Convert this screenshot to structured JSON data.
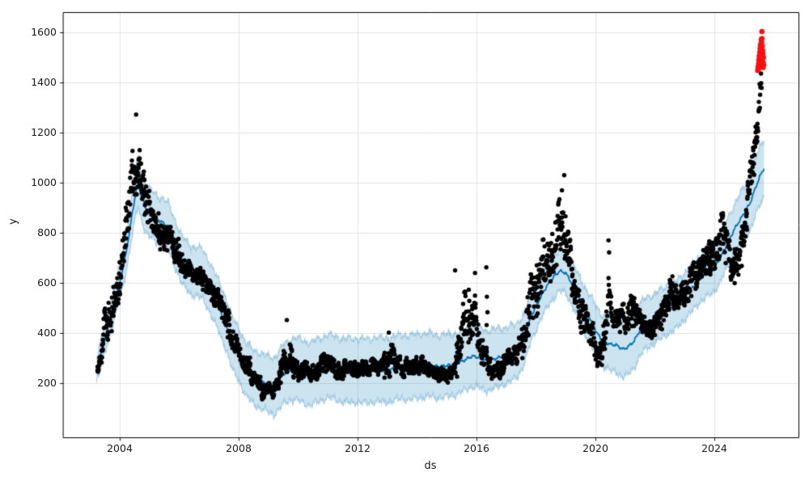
{
  "chart_data": {
    "type": "scatter",
    "subtype": "forecast-with-uncertainty-band",
    "title": "",
    "xlabel": "ds",
    "ylabel": "y",
    "legend": null,
    "grid": true,
    "x_range": [
      2002.095,
      2026.83
    ],
    "y_range": [
      -17.7,
      1679.2
    ],
    "x_ticks": [
      2004,
      2008,
      2012,
      2016,
      2020,
      2024
    ],
    "x_tick_labels": [
      "2004",
      "2008",
      "2012",
      "2016",
      "2020",
      "2024"
    ],
    "y_ticks": [
      200,
      400,
      600,
      800,
      1000,
      1200,
      1400,
      1600
    ],
    "y_tick_labels": [
      "200",
      "400",
      "600",
      "800",
      "1000",
      "1200",
      "1400",
      "1600"
    ],
    "colors": {
      "trend_line": "#0072B2",
      "uncertainty_band": "rgba(0,114,178,0.2)",
      "band_edge": "rgba(0,114,178,0.28)",
      "observations": "#000000",
      "anomalies": "#fa0f0f",
      "grid": "#e4e4e4",
      "frame": "#000000"
    },
    "trend": [
      [
        2003.22,
        255
      ],
      [
        2003.4,
        330
      ],
      [
        2003.6,
        420
      ],
      [
        2003.8,
        510
      ],
      [
        2004.0,
        600
      ],
      [
        2004.2,
        710
      ],
      [
        2004.4,
        860
      ],
      [
        2004.55,
        970
      ],
      [
        2004.62,
        1000
      ],
      [
        2004.7,
        960
      ],
      [
        2004.85,
        905
      ],
      [
        2005.0,
        880
      ],
      [
        2005.2,
        860
      ],
      [
        2005.45,
        840
      ],
      [
        2005.63,
        825
      ],
      [
        2005.85,
        760
      ],
      [
        2006.1,
        690
      ],
      [
        2006.37,
        652
      ],
      [
        2006.6,
        645
      ],
      [
        2006.78,
        636
      ],
      [
        2007.0,
        590
      ],
      [
        2007.3,
        515
      ],
      [
        2007.6,
        430
      ],
      [
        2007.78,
        360
      ],
      [
        2008.0,
        315
      ],
      [
        2008.25,
        255
      ],
      [
        2008.5,
        225
      ],
      [
        2008.75,
        208
      ],
      [
        2009.0,
        196
      ],
      [
        2009.2,
        188
      ],
      [
        2009.35,
        210
      ],
      [
        2009.5,
        235
      ],
      [
        2009.7,
        252
      ],
      [
        2009.9,
        258
      ],
      [
        2010.1,
        248
      ],
      [
        2010.4,
        237
      ],
      [
        2010.7,
        252
      ],
      [
        2011.0,
        268
      ],
      [
        2011.2,
        262
      ],
      [
        2011.5,
        252
      ],
      [
        2011.8,
        248
      ],
      [
        2012.0,
        252
      ],
      [
        2012.3,
        247
      ],
      [
        2012.6,
        256
      ],
      [
        2012.9,
        250
      ],
      [
        2013.2,
        258
      ],
      [
        2013.5,
        266
      ],
      [
        2013.8,
        262
      ],
      [
        2014.1,
        270
      ],
      [
        2014.4,
        274
      ],
      [
        2014.7,
        266
      ],
      [
        2015.0,
        270
      ],
      [
        2015.3,
        276
      ],
      [
        2015.6,
        292
      ],
      [
        2015.85,
        308
      ],
      [
        2016.1,
        302
      ],
      [
        2016.35,
        290
      ],
      [
        2016.6,
        296
      ],
      [
        2016.9,
        308
      ],
      [
        2017.1,
        315
      ],
      [
        2017.35,
        330
      ],
      [
        2017.6,
        375
      ],
      [
        2017.85,
        470
      ],
      [
        2018.1,
        530
      ],
      [
        2018.35,
        585
      ],
      [
        2018.6,
        625
      ],
      [
        2018.8,
        648
      ],
      [
        2019.0,
        640
      ],
      [
        2019.2,
        600
      ],
      [
        2019.4,
        550
      ],
      [
        2019.6,
        500
      ],
      [
        2019.85,
        450
      ],
      [
        2020.05,
        400
      ],
      [
        2020.25,
        368
      ],
      [
        2020.5,
        355
      ],
      [
        2020.7,
        352
      ],
      [
        2020.93,
        335
      ],
      [
        2021.1,
        345
      ],
      [
        2021.3,
        368
      ],
      [
        2021.5,
        412
      ],
      [
        2021.7,
        440
      ],
      [
        2021.9,
        452
      ],
      [
        2022.1,
        468
      ],
      [
        2022.4,
        490
      ],
      [
        2022.7,
        510
      ],
      [
        2023.0,
        548
      ],
      [
        2023.3,
        585
      ],
      [
        2023.56,
        622
      ],
      [
        2023.8,
        640
      ],
      [
        2024.0,
        660
      ],
      [
        2024.2,
        700
      ],
      [
        2024.45,
        760
      ],
      [
        2024.7,
        820
      ],
      [
        2024.95,
        868
      ],
      [
        2025.2,
        918
      ],
      [
        2025.4,
        985
      ],
      [
        2025.55,
        1030
      ],
      [
        2025.67,
        1058
      ]
    ],
    "band_halfwidth": [
      [
        2003.22,
        48
      ],
      [
        2003.8,
        62
      ],
      [
        2004.3,
        82
      ],
      [
        2004.62,
        98
      ],
      [
        2005.2,
        95
      ],
      [
        2006.0,
        95
      ],
      [
        2007.0,
        100
      ],
      [
        2008.0,
        105
      ],
      [
        2009.0,
        112
      ],
      [
        2010.0,
        124
      ],
      [
        2012.0,
        128
      ],
      [
        2014.0,
        128
      ],
      [
        2015.5,
        122
      ],
      [
        2016.5,
        120
      ],
      [
        2017.5,
        105
      ],
      [
        2018.3,
        88
      ],
      [
        2018.9,
        80
      ],
      [
        2019.5,
        92
      ],
      [
        2020.3,
        102
      ],
      [
        2021.0,
        112
      ],
      [
        2021.8,
        100
      ],
      [
        2022.5,
        96
      ],
      [
        2023.5,
        92
      ],
      [
        2024.3,
        95
      ],
      [
        2025.0,
        105
      ],
      [
        2025.67,
        118
      ]
    ],
    "observed_clusters": [
      [
        2003.25,
        262,
        18
      ],
      [
        2003.4,
        300,
        45
      ],
      [
        2003.5,
        470,
        85
      ],
      [
        2003.62,
        430,
        105
      ],
      [
        2003.75,
        500,
        80
      ],
      [
        2003.9,
        560,
        70
      ],
      [
        2004.05,
        650,
        85
      ],
      [
        2004.2,
        850,
        120
      ],
      [
        2004.35,
        960,
        140
      ],
      [
        2004.5,
        1020,
        130
      ],
      [
        2004.62,
        1045,
        110
      ],
      [
        2004.75,
        980,
        110
      ],
      [
        2004.9,
        930,
        90
      ],
      [
        2005.05,
        880,
        80
      ],
      [
        2005.2,
        830,
        70
      ],
      [
        2005.4,
        790,
        70
      ],
      [
        2005.6,
        780,
        60
      ],
      [
        2005.8,
        750,
        60
      ],
      [
        2006.0,
        720,
        60
      ],
      [
        2006.2,
        660,
        50
      ],
      [
        2006.45,
        640,
        40
      ],
      [
        2006.7,
        635,
        40
      ],
      [
        2006.9,
        600,
        50
      ],
      [
        2007.1,
        560,
        50
      ],
      [
        2007.35,
        520,
        55
      ],
      [
        2007.6,
        450,
        60
      ],
      [
        2007.8,
        380,
        50
      ],
      [
        2008.0,
        330,
        45
      ],
      [
        2008.2,
        300,
        45
      ],
      [
        2008.45,
        240,
        45
      ],
      [
        2008.7,
        185,
        45
      ],
      [
        2008.9,
        165,
        35
      ],
      [
        2009.1,
        165,
        35
      ],
      [
        2009.3,
        190,
        45
      ],
      [
        2009.5,
        280,
        70
      ],
      [
        2009.65,
        320,
        70
      ],
      [
        2009.8,
        290,
        60
      ],
      [
        2010.0,
        240,
        40
      ],
      [
        2010.2,
        260,
        45
      ],
      [
        2010.45,
        235,
        40
      ],
      [
        2010.7,
        260,
        45
      ],
      [
        2010.9,
        290,
        45
      ],
      [
        2011.1,
        280,
        40
      ],
      [
        2011.35,
        255,
        40
      ],
      [
        2011.6,
        250,
        40
      ],
      [
        2011.85,
        260,
        40
      ],
      [
        2012.1,
        255,
        35
      ],
      [
        2012.35,
        250,
        35
      ],
      [
        2012.6,
        265,
        40
      ],
      [
        2012.85,
        255,
        35
      ],
      [
        2013.05,
        310,
        85
      ],
      [
        2013.25,
        280,
        45
      ],
      [
        2013.5,
        260,
        40
      ],
      [
        2013.75,
        265,
        40
      ],
      [
        2014.0,
        270,
        40
      ],
      [
        2014.25,
        270,
        40
      ],
      [
        2014.5,
        240,
        35
      ],
      [
        2014.75,
        235,
        35
      ],
      [
        2015.0,
        230,
        30
      ],
      [
        2015.2,
        240,
        35
      ],
      [
        2015.45,
        340,
        110
      ],
      [
        2015.6,
        450,
        160
      ],
      [
        2015.75,
        480,
        130
      ],
      [
        2015.9,
        470,
        100
      ],
      [
        2016.05,
        430,
        90
      ],
      [
        2016.2,
        330,
        80
      ],
      [
        2016.35,
        280,
        60
      ],
      [
        2016.55,
        235,
        35
      ],
      [
        2016.8,
        260,
        40
      ],
      [
        2017.05,
        290,
        40
      ],
      [
        2017.3,
        310,
        45
      ],
      [
        2017.55,
        370,
        70
      ],
      [
        2017.8,
        520,
        110
      ],
      [
        2018.0,
        560,
        100
      ],
      [
        2018.2,
        650,
        120
      ],
      [
        2018.4,
        700,
        120
      ],
      [
        2018.6,
        760,
        130
      ],
      [
        2018.8,
        840,
        130
      ],
      [
        2018.95,
        820,
        150
      ],
      [
        2019.1,
        700,
        120
      ],
      [
        2019.3,
        600,
        110
      ],
      [
        2019.5,
        470,
        90
      ],
      [
        2019.7,
        450,
        70
      ],
      [
        2019.9,
        380,
        80
      ],
      [
        2020.05,
        280,
        75
      ],
      [
        2020.2,
        300,
        60
      ],
      [
        2020.45,
        545,
        95
      ],
      [
        2020.6,
        470,
        60
      ],
      [
        2020.8,
        450,
        55
      ],
      [
        2021.0,
        460,
        60
      ],
      [
        2021.2,
        480,
        70
      ],
      [
        2021.4,
        470,
        60
      ],
      [
        2021.6,
        430,
        50
      ],
      [
        2021.8,
        440,
        55
      ],
      [
        2022.0,
        420,
        50
      ],
      [
        2022.2,
        450,
        60
      ],
      [
        2022.4,
        520,
        70
      ],
      [
        2022.6,
        560,
        70
      ],
      [
        2022.8,
        540,
        60
      ],
      [
        2023.0,
        560,
        60
      ],
      [
        2023.2,
        600,
        70
      ],
      [
        2023.4,
        640,
        70
      ],
      [
        2023.6,
        650,
        80
      ],
      [
        2023.8,
        680,
        80
      ],
      [
        2024.0,
        720,
        80
      ],
      [
        2024.15,
        790,
        95
      ],
      [
        2024.3,
        800,
        100
      ],
      [
        2024.45,
        730,
        90
      ],
      [
        2024.6,
        650,
        70
      ],
      [
        2024.75,
        680,
        80
      ],
      [
        2024.9,
        720,
        80
      ],
      [
        2025.05,
        820,
        90
      ],
      [
        2025.2,
        980,
        110
      ],
      [
        2025.35,
        1100,
        95
      ],
      [
        2025.45,
        1230,
        85
      ],
      [
        2025.55,
        1390,
        110
      ],
      [
        2025.63,
        1450,
        70
      ]
    ],
    "outliers_black": [
      [
        2004.55,
        1272
      ],
      [
        2009.62,
        452
      ],
      [
        2013.05,
        402
      ],
      [
        2015.28,
        650
      ],
      [
        2015.95,
        640
      ],
      [
        2016.33,
        662
      ],
      [
        2016.35,
        545
      ],
      [
        2016.37,
        483
      ],
      [
        2016.34,
        432
      ],
      [
        2018.95,
        1030
      ],
      [
        2020.44,
        770
      ],
      [
        2020.46,
        722
      ]
    ],
    "anomalies_red": [
      [
        2025.46,
        1448
      ],
      [
        2025.47,
        1462
      ],
      [
        2025.48,
        1452
      ],
      [
        2025.49,
        1475
      ],
      [
        2025.5,
        1490
      ],
      [
        2025.51,
        1505
      ],
      [
        2025.52,
        1488
      ],
      [
        2025.53,
        1520
      ],
      [
        2025.54,
        1535
      ],
      [
        2025.55,
        1512
      ],
      [
        2025.55,
        1548
      ],
      [
        2025.56,
        1530
      ],
      [
        2025.57,
        1555
      ],
      [
        2025.58,
        1540
      ],
      [
        2025.58,
        1570
      ],
      [
        2025.59,
        1560
      ],
      [
        2025.6,
        1575
      ],
      [
        2025.6,
        1603
      ],
      [
        2025.61,
        1545
      ],
      [
        2025.62,
        1528
      ],
      [
        2025.62,
        1496
      ],
      [
        2025.63,
        1515
      ],
      [
        2025.64,
        1480
      ],
      [
        2025.64,
        1460
      ],
      [
        2025.65,
        1500
      ],
      [
        2025.66,
        1470
      ]
    ]
  }
}
